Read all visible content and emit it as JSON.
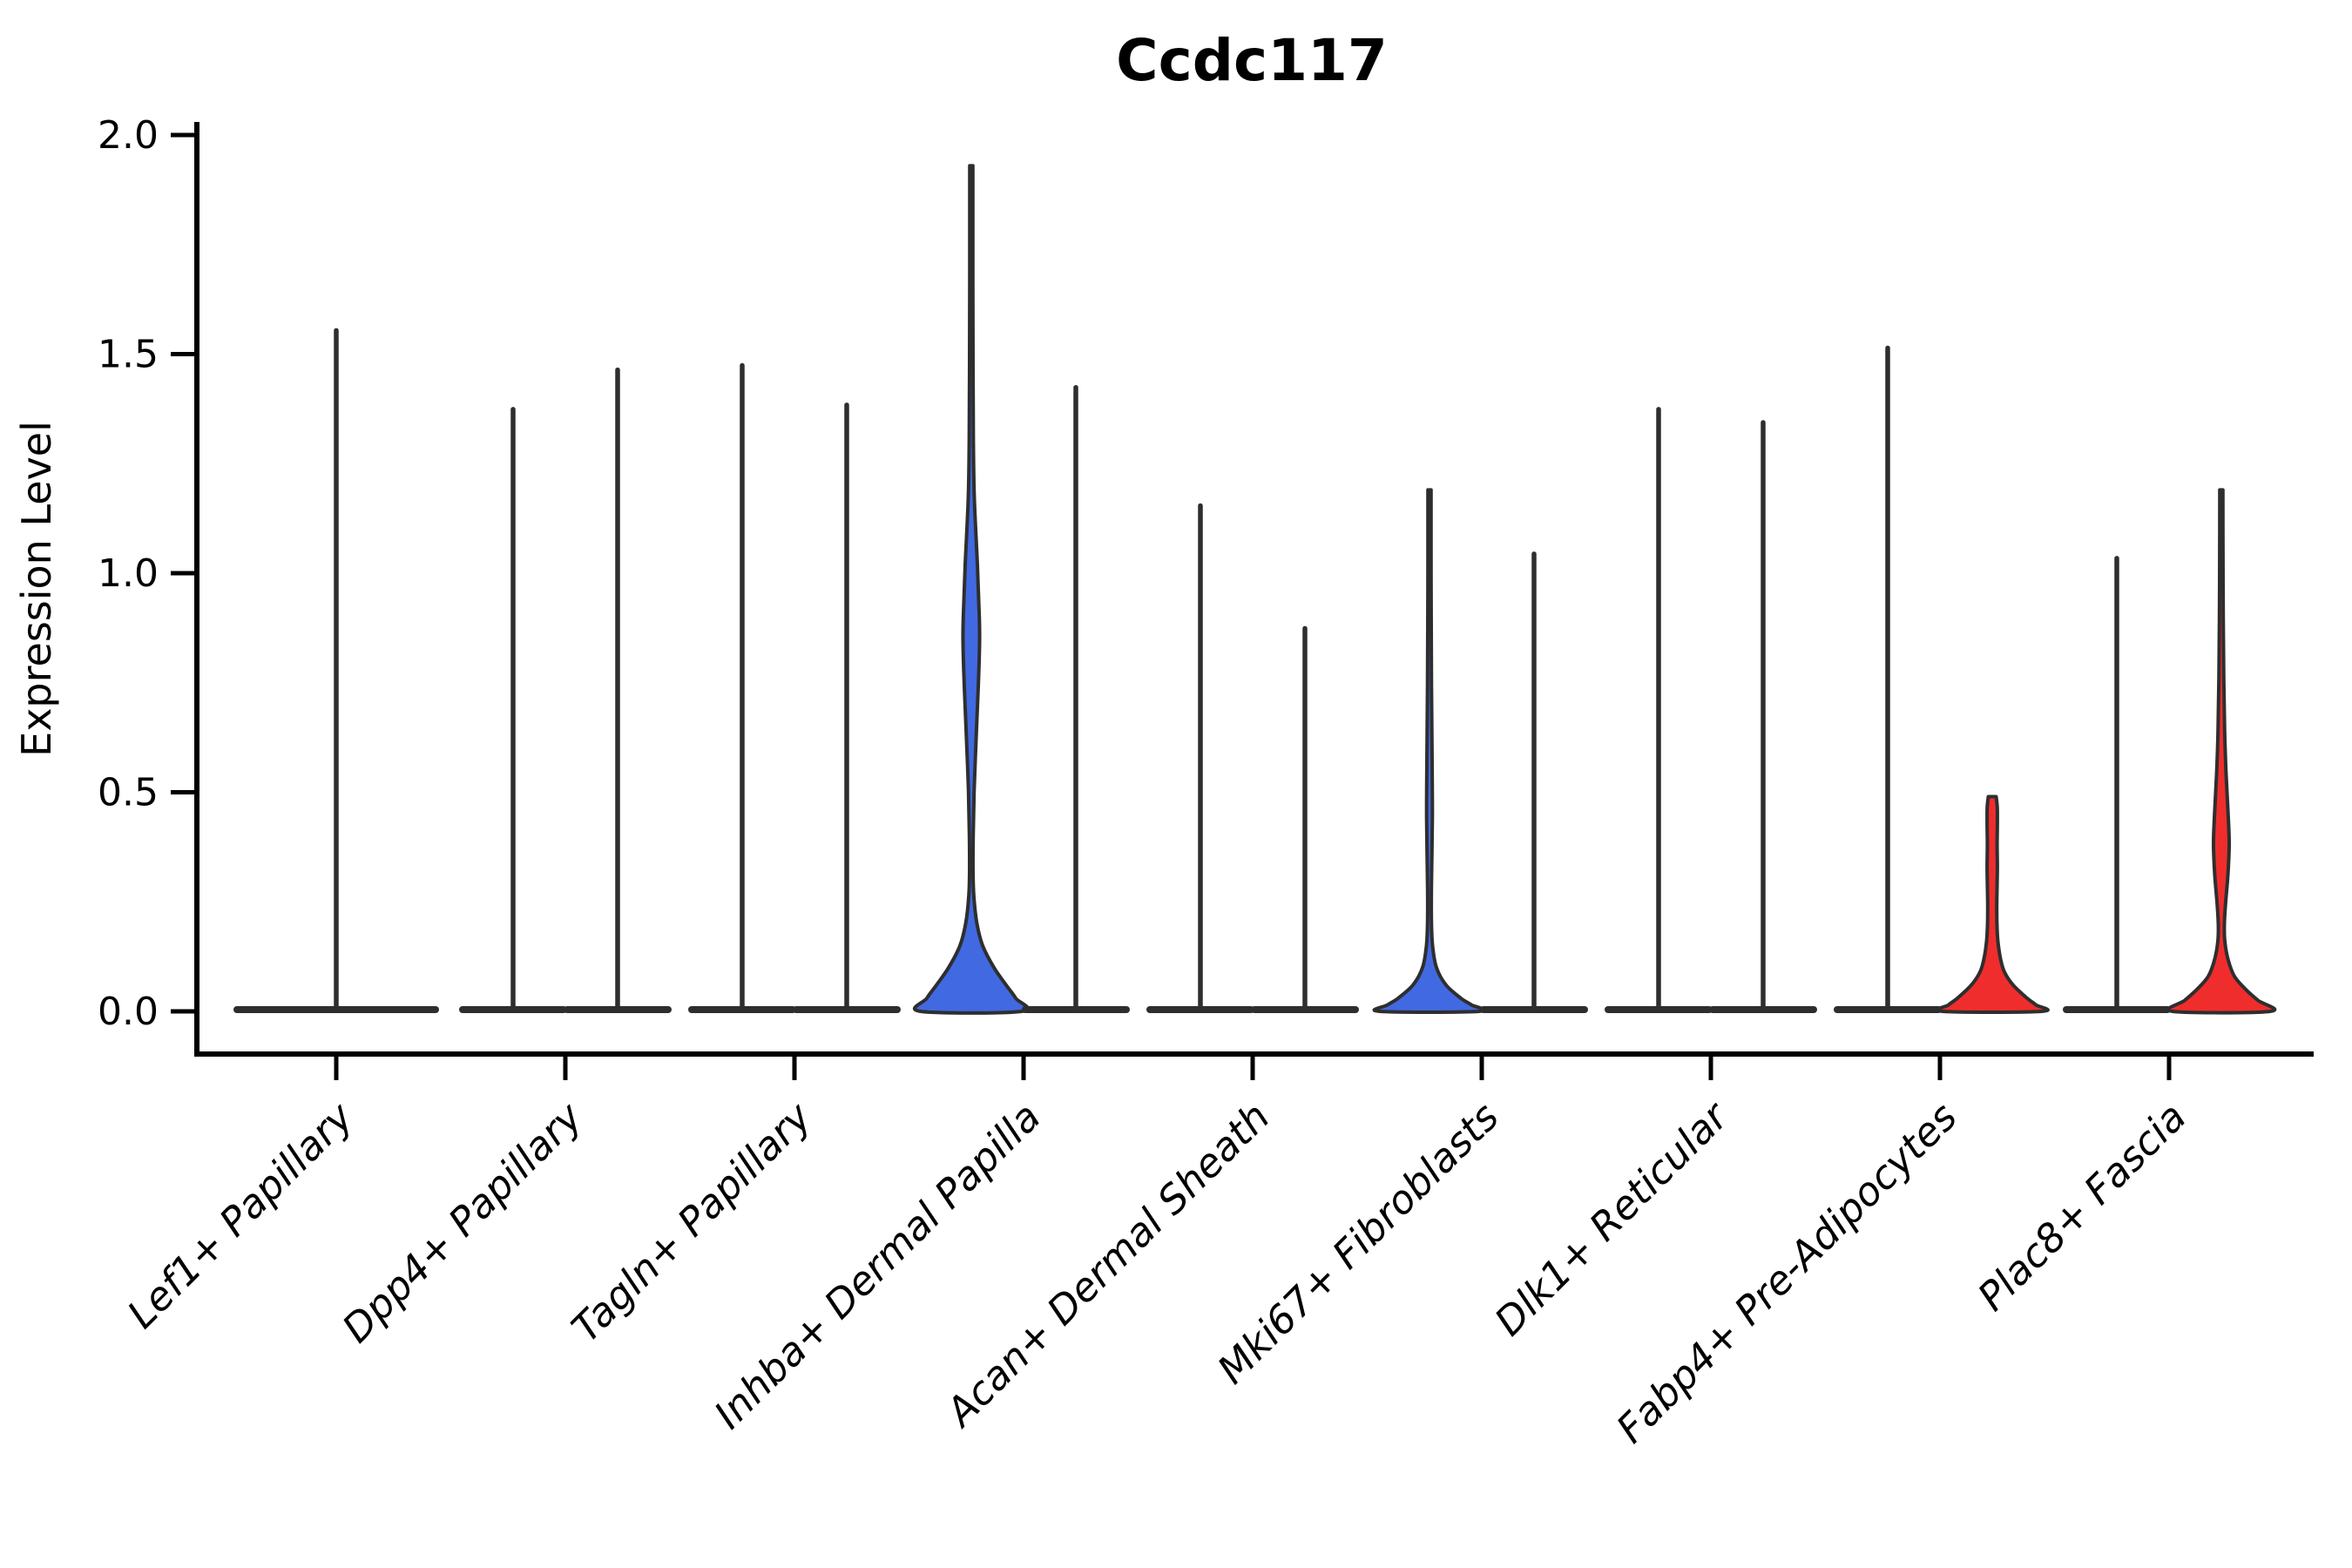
{
  "title": "Ccdc117",
  "axes": {
    "ylabel": "Expression Level"
  },
  "colors": {
    "highlight_blue": "#4169e1",
    "highlight_red": "#f02d2d",
    "violin_outline": "#2e2e2e",
    "axis": "#000000",
    "background": "#ffffff"
  },
  "chart_data": {
    "type": "violin",
    "title": "Ccdc117",
    "ylabel": "Expression Level",
    "xlabel": "",
    "ylim": [
      0.0,
      2.0
    ],
    "yticks": [
      {
        "value": 0.0,
        "label": "0.0"
      },
      {
        "value": 0.5,
        "label": "0.5"
      },
      {
        "value": 1.0,
        "label": "1.0"
      },
      {
        "value": 1.5,
        "label": "1.5"
      },
      {
        "value": 2.0,
        "label": "2.0"
      }
    ],
    "x_tick_rotation": 45,
    "grid": "off",
    "legend": "none",
    "categories": [
      "Lef1+ Papillary",
      "Dpp4+ Papillary",
      "Tagln+ Papillary",
      "Inhba+ Dermal Papilla",
      "Acan+ Dermal Sheath",
      "Mki67+ Fibroblasts",
      "Dlk1+ Reticular",
      "Fabp4+ Pre-Adipocytes",
      "Plac8+ Fascia"
    ],
    "violins": [
      {
        "category_index": 0,
        "position": "center",
        "fill": "gray",
        "max": 1.56,
        "base_halfwidth": 118
      },
      {
        "category_index": 1,
        "position": "left",
        "fill": "gray",
        "max": 1.38,
        "base_halfwidth": 62
      },
      {
        "category_index": 1,
        "position": "right",
        "fill": "gray",
        "max": 1.47,
        "base_halfwidth": 62
      },
      {
        "category_index": 2,
        "position": "left",
        "fill": "gray",
        "max": 1.48,
        "base_halfwidth": 62
      },
      {
        "category_index": 2,
        "position": "right",
        "fill": "gray",
        "max": 1.39,
        "base_halfwidth": 62
      },
      {
        "category_index": 3,
        "position": "left",
        "fill": "blue",
        "max": 1.93,
        "profile": [
          [
            1.93,
            1.8
          ],
          [
            1.7,
            1.8
          ],
          [
            1.48,
            2.0
          ],
          [
            1.3,
            2.4
          ],
          [
            1.17,
            3.5
          ],
          [
            1.02,
            7.0
          ],
          [
            0.9,
            9.2
          ],
          [
            0.84,
            9.5
          ],
          [
            0.74,
            8.0
          ],
          [
            0.62,
            5.5
          ],
          [
            0.5,
            3.2
          ],
          [
            0.4,
            2.2
          ],
          [
            0.32,
            2.0
          ],
          [
            0.26,
            3.0
          ],
          [
            0.2,
            6.5
          ],
          [
            0.15,
            13
          ],
          [
            0.1,
            26
          ],
          [
            0.06,
            40
          ],
          [
            0.03,
            51
          ],
          [
            0.0,
            58
          ]
        ]
      },
      {
        "category_index": 3,
        "position": "right",
        "fill": "gray",
        "max": 1.43,
        "base_halfwidth": 62
      },
      {
        "category_index": 4,
        "position": "left",
        "fill": "gray",
        "max": 1.16,
        "base_halfwidth": 62
      },
      {
        "category_index": 4,
        "position": "right",
        "fill": "gray",
        "max": 0.88,
        "base_halfwidth": 62
      },
      {
        "category_index": 5,
        "position": "left",
        "fill": "blue",
        "max": 1.19,
        "profile": [
          [
            1.19,
            1.8
          ],
          [
            1.04,
            1.8
          ],
          [
            0.88,
            2.0
          ],
          [
            0.74,
            2.3
          ],
          [
            0.62,
            2.8
          ],
          [
            0.52,
            3.2
          ],
          [
            0.44,
            3.3
          ],
          [
            0.36,
            2.8
          ],
          [
            0.28,
            2.2
          ],
          [
            0.21,
            2.2
          ],
          [
            0.15,
            3.5
          ],
          [
            0.1,
            8
          ],
          [
            0.06,
            19
          ],
          [
            0.03,
            36
          ],
          [
            0.015,
            48
          ],
          [
            0.0,
            57
          ]
        ]
      },
      {
        "category_index": 5,
        "position": "right",
        "fill": "gray",
        "max": 1.05,
        "base_halfwidth": 62
      },
      {
        "category_index": 6,
        "position": "left",
        "fill": "gray",
        "max": 1.38,
        "base_halfwidth": 62
      },
      {
        "category_index": 6,
        "position": "right",
        "fill": "gray",
        "max": 1.35,
        "base_halfwidth": 62
      },
      {
        "category_index": 7,
        "position": "left",
        "fill": "gray",
        "max": 1.52,
        "base_halfwidth": 62
      },
      {
        "category_index": 7,
        "position": "right",
        "fill": "red",
        "max": 0.49,
        "profile": [
          [
            0.49,
            4.5
          ],
          [
            0.465,
            5.8
          ],
          [
            0.43,
            5.9
          ],
          [
            0.38,
            5.6
          ],
          [
            0.33,
            5.9
          ],
          [
            0.29,
            5.6
          ],
          [
            0.24,
            5.2
          ],
          [
            0.2,
            5.4
          ],
          [
            0.16,
            6.5
          ],
          [
            0.12,
            9.5
          ],
          [
            0.09,
            14
          ],
          [
            0.06,
            24
          ],
          [
            0.03,
            40
          ],
          [
            0.015,
            50
          ],
          [
            0.0,
            57
          ]
        ]
      },
      {
        "category_index": 8,
        "position": "left",
        "fill": "gray",
        "max": 1.04,
        "base_halfwidth": 62
      },
      {
        "category_index": 8,
        "position": "right",
        "fill": "red",
        "max": 1.19,
        "profile": [
          [
            1.19,
            1.8
          ],
          [
            1.05,
            1.9
          ],
          [
            0.9,
            2.2
          ],
          [
            0.76,
            2.8
          ],
          [
            0.64,
            3.8
          ],
          [
            0.54,
            5.5
          ],
          [
            0.45,
            7.8
          ],
          [
            0.38,
            9.0
          ],
          [
            0.31,
            7.5
          ],
          [
            0.25,
            5.0
          ],
          [
            0.2,
            3.5
          ],
          [
            0.16,
            4.0
          ],
          [
            0.12,
            7.5
          ],
          [
            0.08,
            15
          ],
          [
            0.05,
            28
          ],
          [
            0.025,
            42
          ],
          [
            0.0,
            56
          ]
        ]
      }
    ]
  }
}
